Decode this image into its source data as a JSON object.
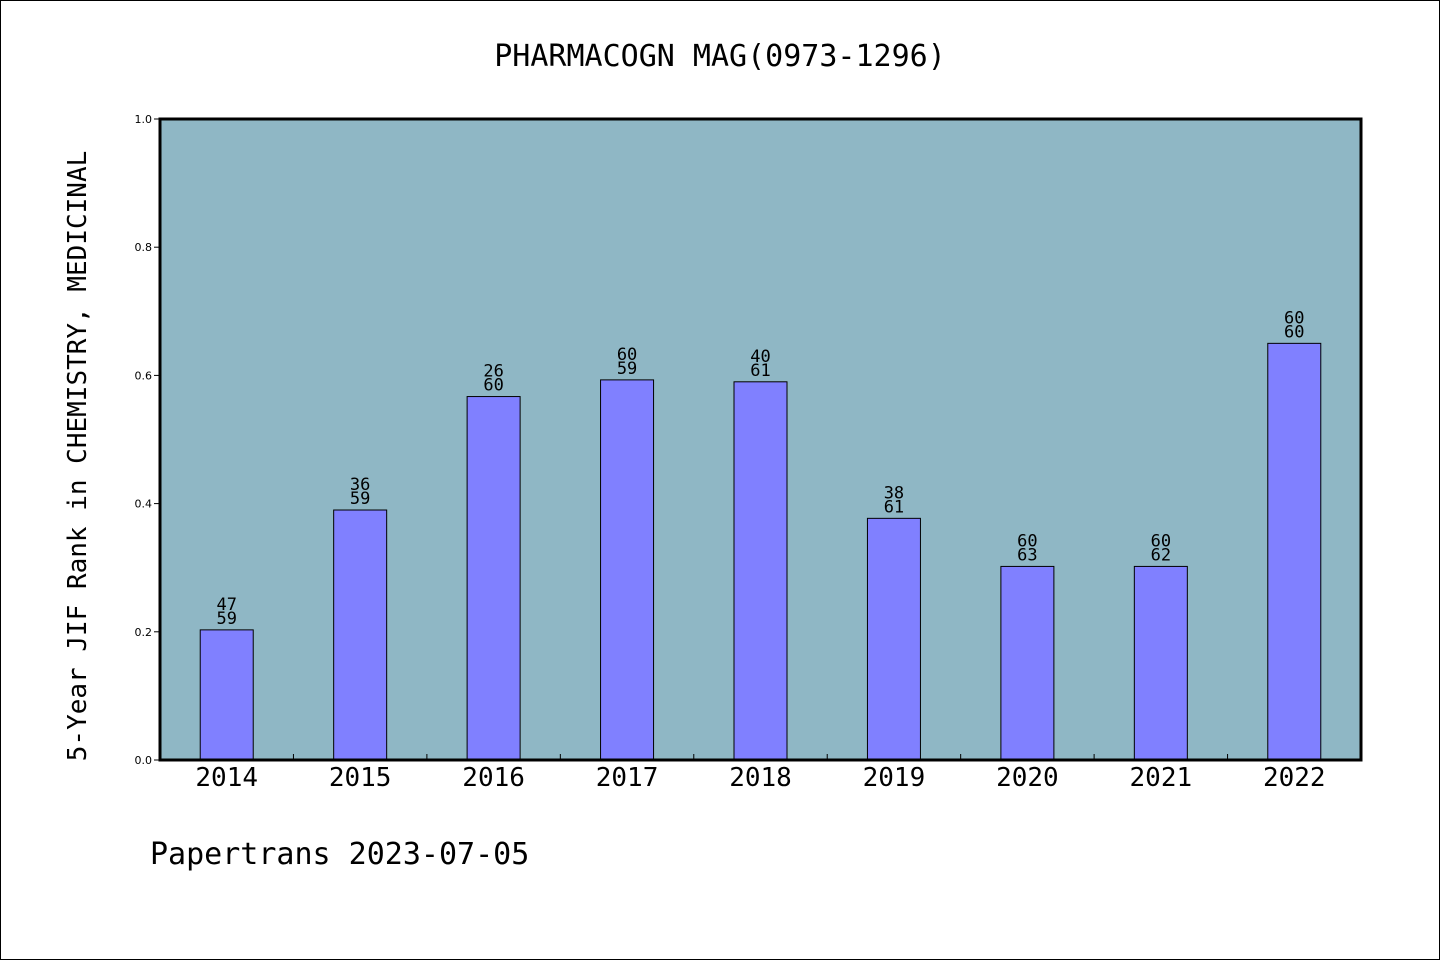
{
  "chart_data": {
    "type": "bar",
    "title": "PHARMACOGN MAG(0973-1296)",
    "ylabel": "5-Year JIF Rank in CHEMISTRY, MEDICINAL",
    "xlabel": "",
    "categories": [
      "2014",
      "2015",
      "2016",
      "2017",
      "2018",
      "2019",
      "2020",
      "2021",
      "2022"
    ],
    "values": [
      0.203,
      0.39,
      0.567,
      0.593,
      0.59,
      0.377,
      0.302,
      0.302,
      0.65
    ],
    "labels_top": [
      "47",
      "36",
      "26",
      "60",
      "40",
      "38",
      "60",
      "60",
      "60"
    ],
    "labels_bottom": [
      "59",
      "59",
      "60",
      "59",
      "61",
      "61",
      "63",
      "62",
      "60"
    ],
    "ylim": [
      0,
      1.0
    ],
    "yticks": [
      "0.0",
      "0.2",
      "0.4",
      "0.6",
      "0.8",
      "1.0"
    ],
    "grid": false,
    "colors": {
      "plot_background": "#8fb7c5",
      "bar_fill": "#8080ff",
      "bar_stroke": "#000000",
      "axis": "#000000"
    }
  },
  "footer": {
    "text": "Papertrans 2023-07-05"
  }
}
